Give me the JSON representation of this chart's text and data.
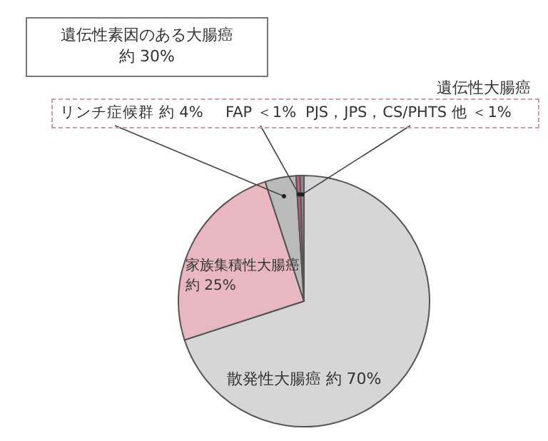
{
  "chart_data": {
    "type": "pie",
    "categories": [
      "散発性大腸癌",
      "家族集積性大腸癌",
      "リンチ症候群",
      "FAP",
      "PJS，JPS，CS/PHTS 他"
    ],
    "values": [
      70,
      25,
      4,
      0.5,
      0.5
    ],
    "value_labels": [
      "約 70%",
      "約 25%",
      "約 4%",
      "＜1%",
      "＜1%"
    ],
    "colors": [
      "#d6d6d6",
      "#e9b7c1",
      "#bababa",
      "#c9607b",
      "#8a8a8a"
    ],
    "annotations": [
      "遺伝性素因のある大腸癌",
      "約 30%",
      "遺伝性大腸癌"
    ]
  }
}
